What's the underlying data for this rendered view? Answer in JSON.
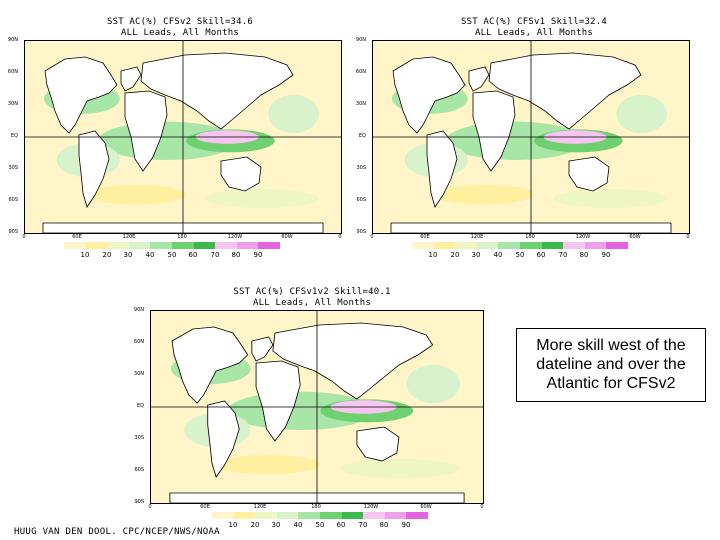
{
  "chart_data": [
    {
      "type": "heatmap",
      "title": "SST AC(%) CFSv2 Skill=34.6",
      "subtitle": "ALL Leads, All Months",
      "lat_labels": [
        "90N",
        "60N",
        "30N",
        "EQ",
        "30S",
        "60S",
        "90S"
      ],
      "lon_labels": [
        "0",
        "60E",
        "120E",
        "180",
        "120W",
        "60W",
        "0"
      ],
      "colorbar_levels": [
        "10",
        "20",
        "30",
        "40",
        "50",
        "60",
        "70",
        "80",
        "90"
      ]
    },
    {
      "type": "heatmap",
      "title": "SST AC(%) CFSv1 Skill=32.4",
      "subtitle": "ALL Leads, All Months",
      "lat_labels": [
        "90N",
        "60N",
        "30N",
        "EQ",
        "30S",
        "60S",
        "90S"
      ],
      "lon_labels": [
        "0",
        "60E",
        "120E",
        "180",
        "120W",
        "60W",
        "0"
      ],
      "colorbar_levels": [
        "10",
        "20",
        "30",
        "40",
        "50",
        "60",
        "70",
        "80",
        "90"
      ]
    },
    {
      "type": "heatmap",
      "title": "SST AC(%) CFSv1v2 Skill=40.1",
      "subtitle": "ALL Leads, All Months",
      "lat_labels": [
        "90N",
        "60N",
        "30N",
        "EQ",
        "30S",
        "60S",
        "90S"
      ],
      "lon_labels": [
        "0",
        "60E",
        "120E",
        "180",
        "120W",
        "60W",
        "0"
      ],
      "colorbar_levels": [
        "10",
        "20",
        "30",
        "40",
        "50",
        "60",
        "70",
        "80",
        "90"
      ]
    }
  ],
  "colorbar_colors": [
    "#fff5c8",
    "#fff0a0",
    "#eef6c4",
    "#d8f2cc",
    "#a8e6a8",
    "#6fd06f",
    "#3cb84c",
    "#f6c6f0",
    "#f0a0ea",
    "#e464e0"
  ],
  "note": {
    "line1": "More skill west of the",
    "line2": "dateline and over the",
    "line3": "Atlantic for CFSv2"
  },
  "credit": "HUUG VAN DEN DOOL. CPC/NCEP/NWS/NOAA"
}
